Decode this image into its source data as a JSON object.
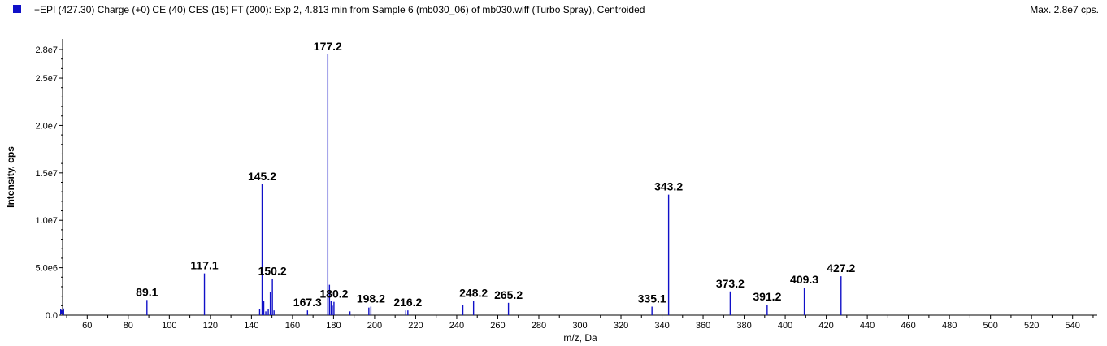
{
  "header": {
    "title": "+EPI (427.30) Charge (+0) CE (40) CES (15) FT (200): Exp 2, 4.813 min from Sample 6 (mb030_06) of mb030.wiff (Turbo Spray), Centroided",
    "max_label": "Max. 2.8e7 cps."
  },
  "colors": {
    "series": "#1010c8",
    "axis": "#000000",
    "legend": "#1010c8"
  },
  "chart_data": {
    "type": "bar",
    "xlabel": "m/z, Da",
    "ylabel": "Intensity, cps",
    "xlim": [
      48,
      552
    ],
    "ylim": [
      0,
      28600000
    ],
    "x_ticks": [
      60,
      80,
      100,
      120,
      140,
      160,
      180,
      200,
      220,
      240,
      260,
      280,
      300,
      320,
      340,
      360,
      380,
      400,
      420,
      440,
      460,
      480,
      500,
      520,
      540
    ],
    "y_ticks": [
      {
        "value": 0,
        "label": "0.0"
      },
      {
        "value": 5000000,
        "label": "5.0e6"
      },
      {
        "value": 10000000,
        "label": "1.0e7"
      },
      {
        "value": 15000000,
        "label": "1.5e7"
      },
      {
        "value": 20000000,
        "label": "2.0e7"
      },
      {
        "value": 25000000,
        "label": "2.5e7"
      },
      {
        "value": 28000000,
        "label": "2.8e7"
      }
    ],
    "peaks": [
      {
        "mz": 48.5,
        "intensity": 700000
      },
      {
        "mz": 89.1,
        "intensity": 1600000,
        "label": "89.1"
      },
      {
        "mz": 117.1,
        "intensity": 4400000,
        "label": "117.1"
      },
      {
        "mz": 144.0,
        "intensity": 600000
      },
      {
        "mz": 145.2,
        "intensity": 13800000,
        "label": "145.2"
      },
      {
        "mz": 146.0,
        "intensity": 1500000
      },
      {
        "mz": 147.0,
        "intensity": 400000
      },
      {
        "mz": 148.2,
        "intensity": 600000
      },
      {
        "mz": 149.2,
        "intensity": 2400000
      },
      {
        "mz": 150.2,
        "intensity": 3800000,
        "label": "150.2"
      },
      {
        "mz": 151.0,
        "intensity": 500000
      },
      {
        "mz": 167.3,
        "intensity": 500000,
        "label": "167.3"
      },
      {
        "mz": 177.2,
        "intensity": 27500000,
        "label": "177.2"
      },
      {
        "mz": 178.0,
        "intensity": 3200000
      },
      {
        "mz": 178.8,
        "intensity": 1500000
      },
      {
        "mz": 179.4,
        "intensity": 1000000
      },
      {
        "mz": 180.2,
        "intensity": 1400000,
        "label": "180.2"
      },
      {
        "mz": 188.0,
        "intensity": 400000
      },
      {
        "mz": 197.2,
        "intensity": 800000
      },
      {
        "mz": 198.2,
        "intensity": 900000,
        "label": "198.2"
      },
      {
        "mz": 215.2,
        "intensity": 500000
      },
      {
        "mz": 216.2,
        "intensity": 500000,
        "label": "216.2"
      },
      {
        "mz": 243.0,
        "intensity": 1100000
      },
      {
        "mz": 248.2,
        "intensity": 1500000,
        "label": "248.2"
      },
      {
        "mz": 265.2,
        "intensity": 1300000,
        "label": "265.2"
      },
      {
        "mz": 335.1,
        "intensity": 900000,
        "label": "335.1"
      },
      {
        "mz": 343.2,
        "intensity": 12700000,
        "label": "343.2"
      },
      {
        "mz": 373.2,
        "intensity": 2500000,
        "label": "373.2"
      },
      {
        "mz": 391.2,
        "intensity": 1100000,
        "label": "391.2"
      },
      {
        "mz": 409.3,
        "intensity": 2900000,
        "label": "409.3"
      },
      {
        "mz": 427.2,
        "intensity": 4100000,
        "label": "427.2"
      }
    ]
  }
}
